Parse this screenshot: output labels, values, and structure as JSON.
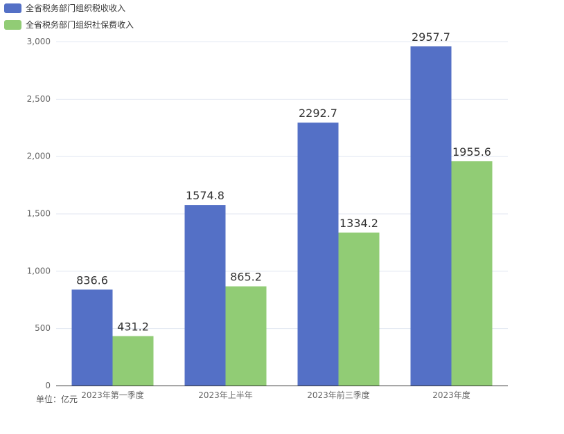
{
  "chart_data": {
    "type": "bar",
    "categories": [
      "2023年第一季度",
      "2023年上半年",
      "2023年前三季度",
      "2023年度"
    ],
    "series": [
      {
        "name": "全省税务部门组织税收收入",
        "values": [
          836.6,
          1574.8,
          2292.7,
          2957.7
        ],
        "color": "#5470c6"
      },
      {
        "name": "全省税务部门组织社保费收入",
        "values": [
          431.2,
          865.2,
          1334.2,
          1955.6
        ],
        "color": "#91cc75"
      }
    ],
    "value_labels": [
      [
        "836.6",
        "1574.8",
        "2292.7",
        "2957.7"
      ],
      [
        "431.2",
        "865.2",
        "1334.2",
        "1955.6"
      ]
    ],
    "yticks": [
      {
        "value": 0,
        "label": "0"
      },
      {
        "value": 500,
        "label": "500"
      },
      {
        "value": 1000,
        "label": "1,000"
      },
      {
        "value": 1500,
        "label": "1,500"
      },
      {
        "value": 2000,
        "label": "2,000"
      },
      {
        "value": 2500,
        "label": "2,500"
      },
      {
        "value": 3000,
        "label": "3,000"
      }
    ],
    "ylim": [
      0,
      3000
    ],
    "grid": true,
    "legend_position": "top-left",
    "unit_note": "单位：亿元",
    "axis_color": "#333333",
    "grid_color": "#e0e6f1"
  }
}
